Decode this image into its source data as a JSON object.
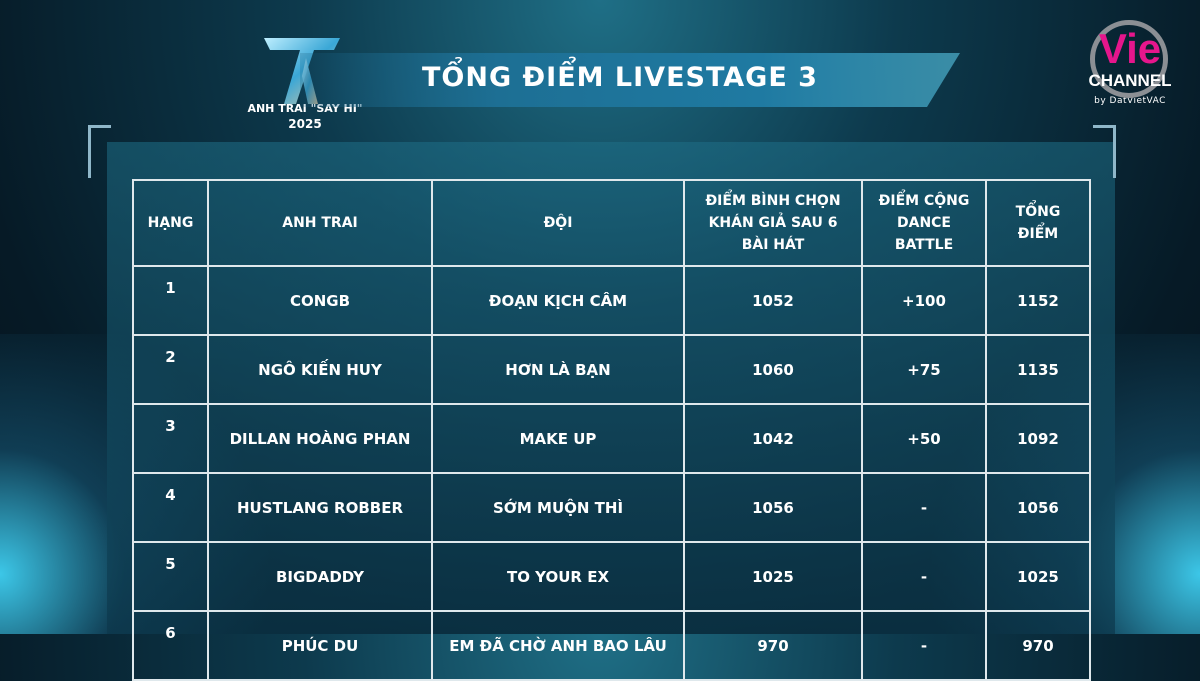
{
  "header": {
    "title": "TỔNG ĐIỂM LIVESTAGE 3",
    "show_logo_line1": "ANH TRAI \"SAY HI\"",
    "show_logo_line2": "2025"
  },
  "channel": {
    "name": "Vie",
    "sub": "CHANNEL",
    "by": "by DatVietVAC",
    "brand_color": "#e6168c"
  },
  "table": {
    "columns": [
      "HẠNG",
      "ANH TRAI",
      "ĐỘI",
      "ĐIỂM BÌNH CHỌN KHÁN GIẢ SAU 6 BÀI HÁT",
      "ĐIỂM CỘNG DANCE BATTLE",
      "TỔNG ĐIỂM"
    ],
    "rows": [
      [
        "1",
        "CONGB",
        "ĐOẠN KỊCH CÂM",
        "1052",
        "+100",
        "1152"
      ],
      [
        "2",
        "NGÔ KIẾN HUY",
        "HƠN LÀ BẠN",
        "1060",
        "+75",
        "1135"
      ],
      [
        "3",
        "DILLAN HOÀNG PHAN",
        "MAKE UP",
        "1042",
        "+50",
        "1092"
      ],
      [
        "4",
        "HUSTLANG ROBBER",
        "SỚM MUỘN THÌ",
        "1056",
        "-",
        "1056"
      ],
      [
        "5",
        "BIGDADDY",
        "TO YOUR EX",
        "1025",
        "-",
        "1025"
      ],
      [
        "6",
        "PHÚC DU",
        "EM ĐÃ CHỜ ANH BAO LÂU",
        "970",
        "-",
        "970"
      ]
    ]
  }
}
